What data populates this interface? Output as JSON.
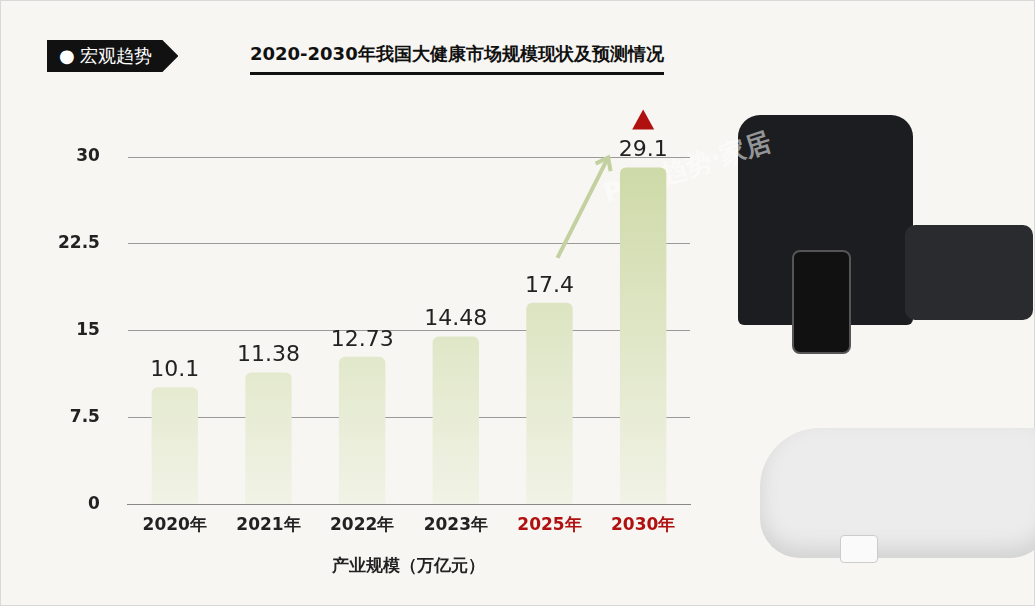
{
  "header": {
    "badge": "● 宏观趋势",
    "watermark": "POP趋势·家居"
  },
  "chart_data": {
    "type": "bar",
    "title": "2020-2030年我国大健康市场规模现状及预测情况",
    "categories": [
      "2020年",
      "2021年",
      "2022年",
      "2023年",
      "2025年",
      "2030年"
    ],
    "values": [
      10.1,
      11.38,
      12.73,
      14.48,
      17.4,
      29.1
    ],
    "color": "#cdd9a6",
    "x_label": "产业规模（万亿元）",
    "ylim": [
      0,
      30
    ],
    "yticks": [
      0,
      7.5,
      15,
      22.5,
      30
    ],
    "grid": true,
    "data_labels": true
  }
}
